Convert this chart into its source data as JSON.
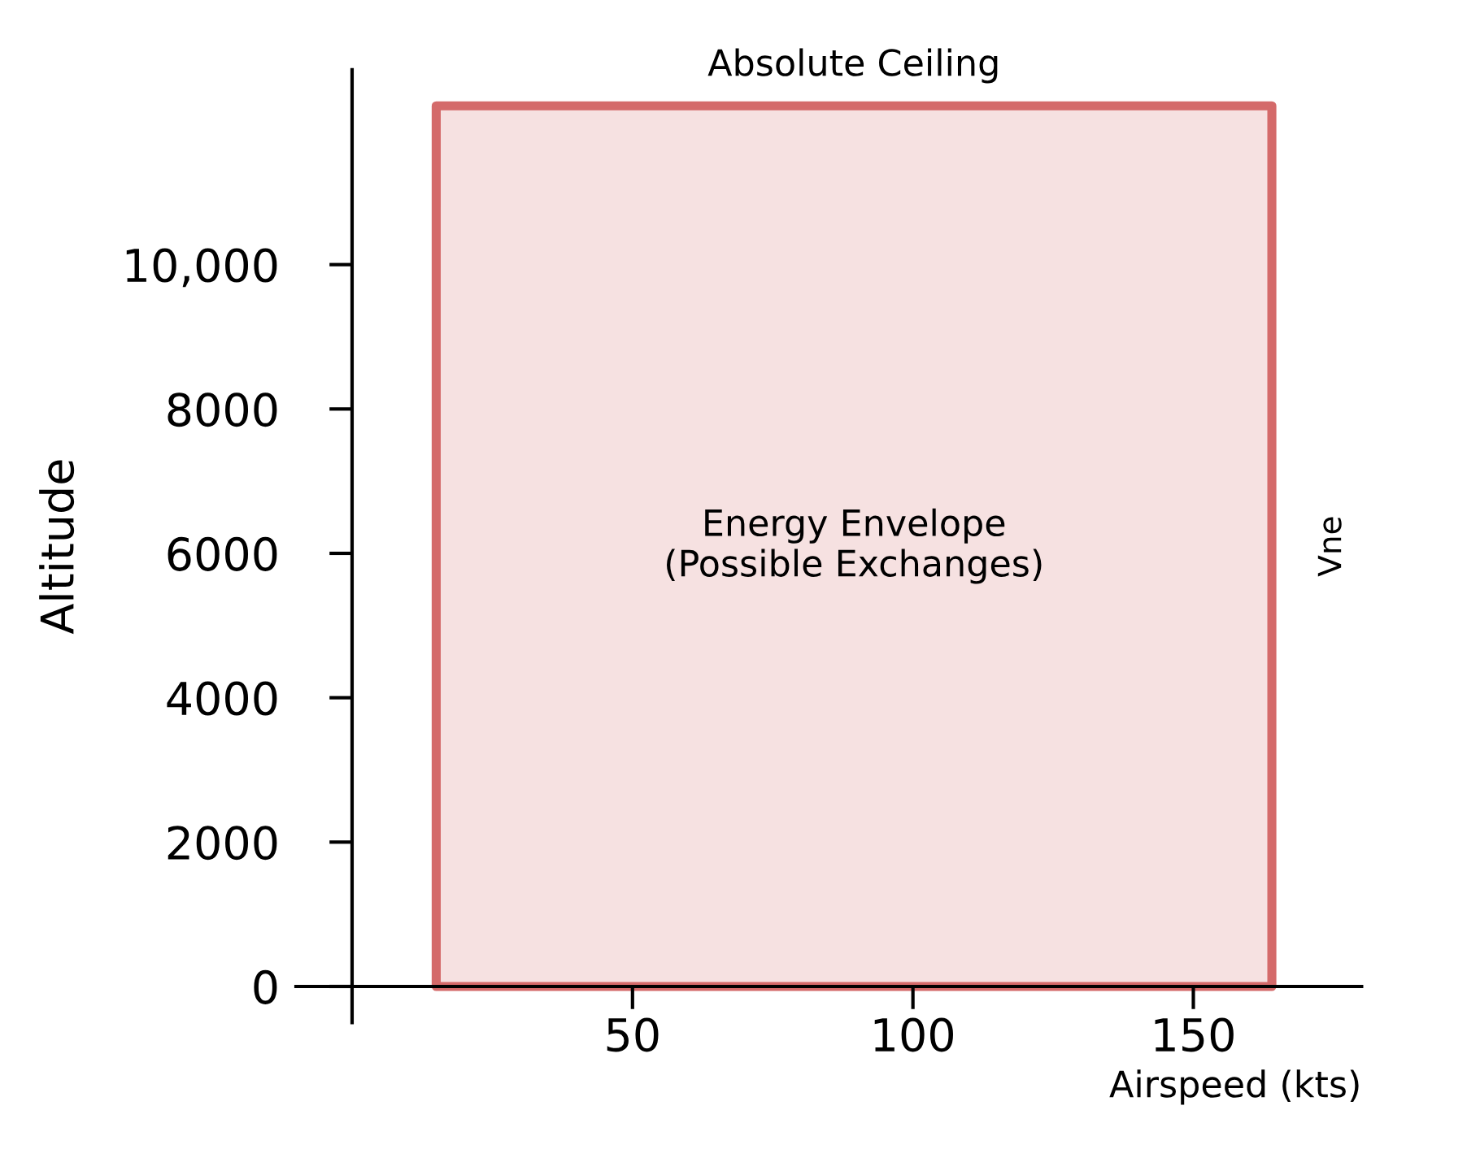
{
  "chart_data": {
    "type": "area",
    "xlabel": "Airspeed (kts)",
    "ylabel": "Altitude",
    "series": [
      {
        "color": "#d46a6a",
        "x": [
          15,
          164
        ],
        "values": [
          12200,
          12200
        ]
      }
    ],
    "xlim": [
      -10,
      180
    ],
    "ylim": [
      -500,
      12700
    ],
    "xticks": [
      50,
      100,
      150
    ],
    "yticks": [
      0,
      2000,
      4000,
      6000,
      8000,
      {
        "value": 10000,
        "label": "10,000"
      }
    ],
    "grid": false,
    "annotations": [
      "Absolute Ceiling",
      "Vne",
      "Energy Envelope\n(Possible Exchanges)"
    ]
  }
}
